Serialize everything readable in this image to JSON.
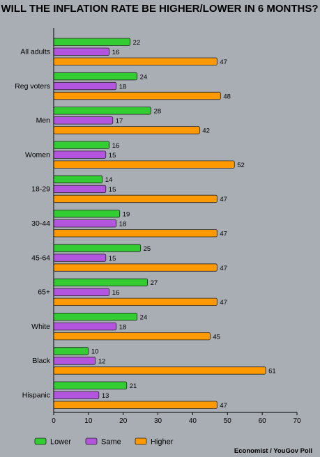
{
  "chart_data": {
    "type": "bar",
    "orientation": "horizontal",
    "title": "WILL THE INFLATION RATE BE HIGHER/LOWER IN 6 MONTHS?",
    "categories": [
      "All adults",
      "Reg voters",
      "Men",
      "Women",
      "18-29",
      "30-44",
      "45-64",
      "65+",
      "White",
      "Black",
      "Hispanic"
    ],
    "series": [
      {
        "name": "Lower",
        "color": "#33cc33",
        "values": [
          22,
          24,
          28,
          16,
          14,
          19,
          25,
          27,
          24,
          10,
          21
        ]
      },
      {
        "name": "Same",
        "color": "#b455e0",
        "values": [
          16,
          18,
          17,
          15,
          15,
          18,
          15,
          16,
          18,
          12,
          13
        ]
      },
      {
        "name": "Higher",
        "color": "#ff9900",
        "values": [
          47,
          48,
          42,
          52,
          47,
          47,
          47,
          47,
          45,
          61,
          47
        ]
      }
    ],
    "xlim": [
      0,
      70
    ],
    "xticks": [
      0,
      10,
      20,
      30,
      40,
      50,
      60,
      70
    ],
    "grid": false,
    "legend_position": "bottom-left",
    "source": "Economist / YouGov Poll"
  }
}
